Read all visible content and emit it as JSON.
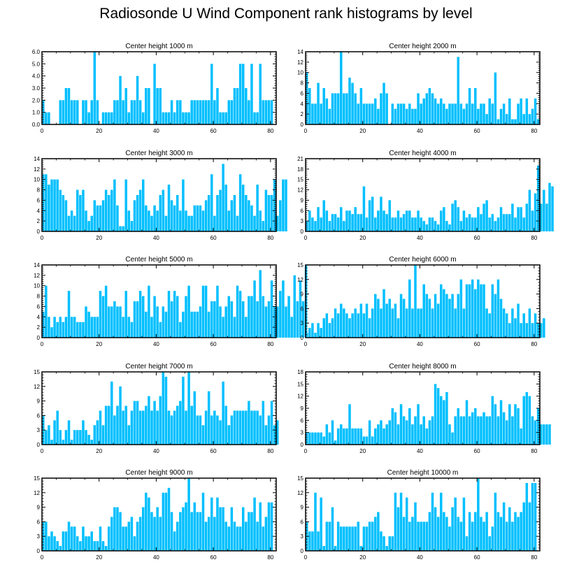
{
  "figure_title": "Radiosonde U Wind Component rank histograms by level",
  "bar_color": "#00bfff",
  "chart_data": [
    {
      "type": "bar",
      "title": "Center height 1000 m",
      "xlim": [
        0,
        82
      ],
      "ylim": [
        0,
        6
      ],
      "xticks": [
        0,
        20,
        40,
        60,
        80
      ],
      "yticks": [
        0,
        1,
        2,
        3,
        4,
        5,
        6
      ],
      "ytick_labels": [
        "0.0",
        "1.0",
        "2.0",
        "3.0",
        "4.0",
        "5.0",
        "6.0"
      ],
      "values": [
        2,
        1,
        1,
        0,
        0,
        0,
        2,
        2,
        3,
        3,
        2,
        2,
        2,
        0,
        2,
        2,
        1,
        2,
        6,
        2,
        0,
        1,
        1,
        1,
        1,
        2,
        2,
        4,
        2,
        3,
        1,
        2,
        2,
        4,
        2,
        1,
        3,
        3,
        0,
        5,
        3,
        3,
        1,
        1,
        1,
        2,
        1,
        2,
        2,
        1,
        1,
        1,
        2,
        2,
        2,
        2,
        2,
        2,
        2,
        5,
        2,
        3,
        1,
        1,
        1,
        2,
        2,
        3,
        3,
        5,
        5,
        3,
        2,
        5,
        1,
        1,
        5,
        2,
        2,
        2,
        2
      ]
    },
    {
      "type": "bar",
      "title": "Center height 2000 m",
      "xlim": [
        0,
        82
      ],
      "ylim": [
        0,
        14
      ],
      "xticks": [
        0,
        20,
        40,
        60,
        80
      ],
      "yticks": [
        0,
        2,
        4,
        6,
        8,
        10,
        12,
        14
      ],
      "ytick_labels": [
        "0",
        "2",
        "4",
        "6",
        "8",
        "10",
        "12",
        "14"
      ],
      "values": [
        10,
        7,
        4,
        4,
        8,
        4,
        7,
        5,
        3,
        6,
        6,
        6,
        14,
        6,
        6,
        9,
        8,
        6,
        4,
        7,
        4,
        4,
        4,
        4,
        5,
        3,
        6,
        8,
        6,
        0,
        4,
        3,
        4,
        4,
        4,
        3,
        4,
        3,
        3,
        6,
        4,
        5,
        6,
        7,
        6,
        5,
        4,
        5,
        4,
        3,
        4,
        4,
        4,
        13,
        4,
        3,
        4,
        7,
        4,
        7,
        3,
        4,
        4,
        2,
        5,
        4,
        10,
        1,
        3,
        4,
        2,
        5,
        1,
        1,
        4,
        5,
        2,
        5,
        2,
        3,
        5,
        1
      ]
    },
    {
      "type": "bar",
      "title": "Center height 3000 m",
      "xlim": [
        0,
        82
      ],
      "ylim": [
        0,
        14
      ],
      "xticks": [
        0,
        20,
        40,
        60,
        80
      ],
      "yticks": [
        0,
        2,
        4,
        6,
        8,
        10,
        12,
        14
      ],
      "ytick_labels": [
        "0",
        "2",
        "4",
        "6",
        "8",
        "10",
        "12",
        "14"
      ],
      "values": [
        11,
        11,
        9,
        10,
        10,
        10,
        8,
        7,
        6,
        3,
        4,
        3,
        8,
        7,
        8,
        4,
        2,
        3,
        6,
        5,
        5,
        6,
        8,
        7,
        8,
        10,
        5,
        1,
        1,
        10,
        4,
        2,
        6,
        7,
        8,
        10,
        5,
        4,
        3,
        5,
        4,
        7,
        8,
        3,
        9,
        6,
        5,
        7,
        4,
        10,
        4,
        3,
        3,
        5,
        5,
        5,
        4,
        6,
        7,
        11,
        3,
        7,
        8,
        13,
        9,
        4,
        6,
        7,
        3,
        11,
        9,
        7,
        6,
        5,
        3,
        9,
        4,
        2,
        8,
        7,
        7,
        10,
        3,
        6,
        10,
        10
      ]
    },
    {
      "type": "bar",
      "title": "Center height 4000 m",
      "xlim": [
        0,
        82
      ],
      "ylim": [
        0,
        21
      ],
      "xticks": [
        0,
        20,
        40,
        60,
        80
      ],
      "yticks": [
        0,
        3,
        6,
        9,
        12,
        15,
        18,
        21
      ],
      "ytick_labels": [
        "0",
        "3",
        "6",
        "9",
        "12",
        "15",
        "18",
        "21"
      ],
      "values": [
        3,
        6,
        4,
        3,
        7,
        4,
        9,
        6,
        3,
        5,
        5,
        4,
        7,
        3,
        6,
        6,
        5,
        7,
        5,
        5,
        13,
        4,
        9,
        10,
        4,
        6,
        10,
        6,
        5,
        9,
        4,
        4,
        6,
        4,
        5,
        6,
        6,
        4,
        4,
        6,
        4,
        3,
        2,
        4,
        4,
        3,
        2,
        6,
        7,
        3,
        2,
        8,
        9,
        7,
        3,
        6,
        4,
        5,
        4,
        4,
        7,
        5,
        8,
        9,
        4,
        5,
        3,
        4,
        7,
        5,
        5,
        5,
        8,
        4,
        7,
        7,
        4,
        8,
        12,
        6,
        11,
        19,
        8,
        12,
        8,
        14,
        13
      ]
    },
    {
      "type": "bar",
      "title": "Center height 5000 m",
      "xlim": [
        0,
        82
      ],
      "ylim": [
        0,
        14
      ],
      "xticks": [
        0,
        20,
        40,
        60,
        80
      ],
      "yticks": [
        0,
        2,
        4,
        6,
        8,
        10,
        12,
        14
      ],
      "ytick_labels": [
        "0",
        "2",
        "4",
        "6",
        "8",
        "10",
        "12",
        "14"
      ],
      "values": [
        5,
        10,
        4,
        2,
        4,
        3,
        4,
        3,
        4,
        9,
        4,
        4,
        3,
        3,
        3,
        6,
        5,
        4,
        4,
        4,
        9,
        8,
        10,
        6,
        6,
        7,
        6,
        6,
        4,
        9,
        4,
        3,
        7,
        7,
        9,
        8,
        5,
        10,
        4,
        8,
        6,
        3,
        6,
        5,
        9,
        7,
        9,
        8,
        3,
        5,
        8,
        10,
        5,
        5,
        5,
        6,
        10,
        10,
        5,
        7,
        7,
        10,
        6,
        4,
        6,
        8,
        7,
        4,
        10,
        9,
        7,
        4,
        8,
        8,
        11,
        7,
        13,
        8,
        6,
        7,
        11,
        6,
        6,
        9,
        11,
        6,
        8,
        4,
        12,
        7,
        11,
        7,
        14
      ]
    },
    {
      "type": "bar",
      "title": "Center height 6000 m",
      "xlim": [
        0,
        82
      ],
      "ylim": [
        0,
        15
      ],
      "xticks": [
        0,
        20,
        40,
        60,
        80
      ],
      "yticks": [
        0,
        3,
        6,
        9,
        12,
        15
      ],
      "ytick_labels": [
        "0",
        "3",
        "6",
        "9",
        "12",
        "15"
      ],
      "values": [
        1,
        2,
        3,
        1,
        3,
        2,
        4,
        5,
        3,
        4,
        6,
        5,
        7,
        6,
        5,
        4,
        5,
        6,
        5,
        7,
        5,
        7,
        4,
        6,
        9,
        8,
        6,
        10,
        7,
        8,
        6,
        7,
        4,
        9,
        8,
        6,
        12,
        6,
        15,
        6,
        6,
        11,
        9,
        8,
        6,
        9,
        7,
        11,
        10,
        9,
        8,
        9,
        6,
        9,
        12,
        6,
        11,
        11,
        12,
        10,
        12,
        11,
        11,
        6,
        5,
        11,
        9,
        12,
        8,
        6,
        5,
        3,
        6,
        4,
        7,
        3,
        5,
        3,
        6,
        3,
        5,
        3,
        3,
        4
      ]
    },
    {
      "type": "bar",
      "title": "Center height 7000 m",
      "xlim": [
        0,
        82
      ],
      "ylim": [
        0,
        15
      ],
      "xticks": [
        0,
        20,
        40,
        60,
        80
      ],
      "yticks": [
        0,
        3,
        6,
        9,
        12,
        15
      ],
      "ytick_labels": [
        "0",
        "3",
        "6",
        "9",
        "12",
        "15"
      ],
      "values": [
        6,
        3,
        4,
        1,
        5,
        7,
        3,
        1,
        3,
        5,
        1,
        3,
        3,
        3,
        5,
        3,
        2,
        1,
        4,
        5,
        7,
        4,
        8,
        8,
        13,
        6,
        8,
        12,
        7,
        8,
        4,
        7,
        9,
        9,
        7,
        7,
        8,
        10,
        7,
        9,
        7,
        10,
        15,
        14,
        7,
        6,
        7,
        8,
        9,
        14,
        7,
        15,
        8,
        11,
        6,
        6,
        4,
        7,
        11,
        6,
        7,
        6,
        5,
        13,
        8,
        4,
        6,
        7,
        7,
        7,
        7,
        7,
        9,
        7,
        7,
        7,
        6,
        9,
        4,
        6,
        9,
        4,
        5
      ]
    },
    {
      "type": "bar",
      "title": "Center height 8000 m",
      "xlim": [
        0,
        82
      ],
      "ylim": [
        0,
        18
      ],
      "xticks": [
        0,
        20,
        40,
        60,
        80
      ],
      "yticks": [
        0,
        3,
        6,
        9,
        12,
        15,
        18
      ],
      "ytick_labels": [
        "0",
        "3",
        "6",
        "9",
        "12",
        "15",
        "18"
      ],
      "values": [
        3,
        3,
        3,
        3,
        3,
        3,
        2,
        5,
        3,
        6,
        1,
        4,
        5,
        4,
        4,
        10,
        4,
        4,
        4,
        4,
        2,
        2,
        6,
        2,
        4,
        5,
        6,
        4,
        5,
        6,
        9,
        8,
        5,
        10,
        7,
        6,
        9,
        5,
        7,
        10,
        5,
        7,
        4,
        6,
        7,
        15,
        14,
        12,
        11,
        13,
        5,
        3,
        7,
        9,
        7,
        7,
        11,
        7,
        8,
        9,
        7,
        7,
        8,
        7,
        7,
        12,
        10,
        7,
        11,
        8,
        6,
        10,
        7,
        10,
        9,
        4,
        12,
        13,
        12,
        7,
        6,
        9,
        5,
        5,
        5,
        5
      ]
    },
    {
      "type": "bar",
      "title": "Center height 9000 m",
      "xlim": [
        0,
        82
      ],
      "ylim": [
        0,
        15
      ],
      "xticks": [
        0,
        20,
        40,
        60,
        80
      ],
      "yticks": [
        0,
        3,
        6,
        9,
        12,
        15
      ],
      "ytick_labels": [
        "0",
        "3",
        "6",
        "9",
        "12",
        "15"
      ],
      "values": [
        6,
        6,
        3,
        4,
        3,
        2,
        1,
        4,
        4,
        6,
        5,
        5,
        3,
        2,
        5,
        3,
        3,
        4,
        2,
        2,
        5,
        2,
        1,
        5,
        7,
        9,
        9,
        8,
        5,
        5,
        6,
        7,
        3,
        6,
        7,
        9,
        12,
        11,
        8,
        7,
        9,
        7,
        12,
        12,
        13,
        8,
        4,
        6,
        8,
        9,
        10,
        15,
        8,
        10,
        8,
        8,
        12,
        6,
        7,
        11,
        7,
        11,
        9,
        9,
        6,
        5,
        9,
        6,
        5,
        5,
        9,
        6,
        8,
        8,
        11,
        6,
        10,
        5,
        7,
        10,
        10
      ]
    },
    {
      "type": "bar",
      "title": "Center height 10000 m",
      "xlim": [
        0,
        82
      ],
      "ylim": [
        0,
        15
      ],
      "xticks": [
        0,
        20,
        40,
        60,
        80
      ],
      "yticks": [
        0,
        3,
        6,
        9,
        12,
        15
      ],
      "ytick_labels": [
        "0",
        "3",
        "6",
        "9",
        "12",
        "15"
      ],
      "values": [
        6,
        4,
        4,
        12,
        4,
        11,
        1,
        6,
        6,
        9,
        1,
        6,
        5,
        5,
        5,
        5,
        5,
        5,
        6,
        1,
        5,
        5,
        6,
        6,
        7,
        8,
        4,
        3,
        1,
        3,
        3,
        12,
        9,
        12,
        7,
        11,
        6,
        7,
        10,
        6,
        6,
        6,
        6,
        8,
        12,
        9,
        7,
        12,
        8,
        7,
        5,
        9,
        11,
        7,
        6,
        11,
        3,
        8,
        6,
        8,
        15,
        7,
        6,
        8,
        3,
        5,
        12,
        8,
        7,
        10,
        6,
        9,
        6,
        8,
        7,
        8,
        10,
        14,
        10,
        14,
        14
      ]
    }
  ]
}
